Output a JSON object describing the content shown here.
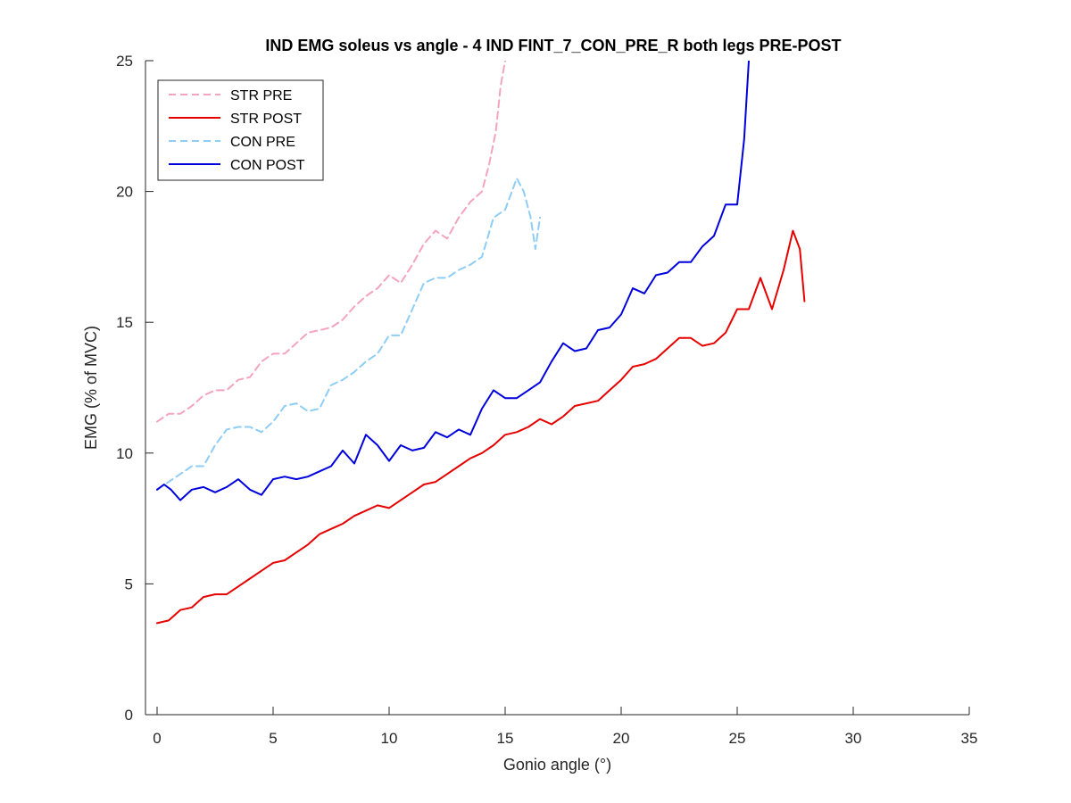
{
  "chart_data": {
    "type": "line",
    "title": "IND EMG soleus vs angle - 4 IND FINT_7_CON_PRE_R both legs PRE-POST",
    "xlabel": "Gonio angle (°)",
    "ylabel": "EMG (% of MVC)",
    "xlim": [
      -0.5,
      35
    ],
    "ylim": [
      0,
      25
    ],
    "xticks": [
      0,
      5,
      10,
      15,
      20,
      25,
      30,
      35
    ],
    "yticks": [
      0,
      5,
      10,
      15,
      20,
      25
    ],
    "grid": false,
    "legend_position": "top-left",
    "series": [
      {
        "name": "STR PRE",
        "color": "#f4a3c0",
        "dash": "dashed",
        "x": [
          0,
          0.5,
          1,
          1.5,
          2,
          2.5,
          3,
          3.5,
          4,
          4.5,
          5,
          5.5,
          6,
          6.5,
          7,
          7.5,
          8,
          8.5,
          9,
          9.5,
          10,
          10.5,
          11,
          11.5,
          12,
          12.5,
          13,
          13.5,
          14,
          14.3,
          14.6,
          14.8,
          15
        ],
        "y": [
          11.2,
          11.5,
          11.5,
          11.8,
          12.2,
          12.4,
          12.4,
          12.8,
          12.9,
          13.5,
          13.8,
          13.8,
          14.2,
          14.6,
          14.7,
          14.8,
          15.1,
          15.6,
          16.0,
          16.3,
          16.8,
          16.5,
          17.2,
          18.0,
          18.5,
          18.2,
          19.0,
          19.6,
          20.0,
          21.0,
          22.3,
          24.0,
          25.0
        ]
      },
      {
        "name": "STR POST",
        "color": "#e60000",
        "dash": "solid",
        "x": [
          0,
          0.5,
          1,
          1.5,
          2,
          2.5,
          3,
          3.5,
          4,
          4.5,
          5,
          5.5,
          6,
          6.5,
          7,
          7.5,
          8,
          8.5,
          9,
          9.5,
          10,
          10.5,
          11,
          11.5,
          12,
          12.5,
          13,
          13.5,
          14,
          14.5,
          15,
          15.5,
          16,
          16.5,
          17,
          17.5,
          18,
          18.5,
          19,
          19.5,
          20,
          20.5,
          21,
          21.5,
          22,
          22.5,
          23,
          23.5,
          24,
          24.5,
          25,
          25.5,
          26,
          26.5,
          27,
          27.4,
          27.7,
          27.9
        ],
        "y": [
          3.5,
          3.6,
          4.0,
          4.1,
          4.5,
          4.6,
          4.6,
          4.9,
          5.2,
          5.5,
          5.8,
          5.9,
          6.2,
          6.5,
          6.9,
          7.1,
          7.3,
          7.6,
          7.8,
          8.0,
          7.9,
          8.2,
          8.5,
          8.8,
          8.9,
          9.2,
          9.5,
          9.8,
          10.0,
          10.3,
          10.7,
          10.8,
          11.0,
          11.3,
          11.1,
          11.4,
          11.8,
          11.9,
          12.0,
          12.4,
          12.8,
          13.3,
          13.4,
          13.6,
          14.0,
          14.4,
          14.4,
          14.1,
          14.2,
          14.6,
          15.5,
          15.5,
          16.7,
          15.5,
          17.0,
          18.5,
          17.8,
          15.8
        ]
      },
      {
        "name": "CON PRE",
        "color": "#8ecdf5",
        "dash": "dashed",
        "x": [
          0,
          0.5,
          1,
          1.5,
          2,
          2.5,
          3,
          3.5,
          4,
          4.5,
          5,
          5.5,
          6,
          6.5,
          7,
          7.5,
          8,
          8.5,
          9,
          9.5,
          10,
          10.5,
          11,
          11.5,
          12,
          12.5,
          13,
          13.5,
          14,
          14.5,
          15,
          15.5,
          15.8,
          16.1,
          16.3,
          16.5
        ],
        "y": [
          8.6,
          8.9,
          9.2,
          9.5,
          9.5,
          10.3,
          10.9,
          11.0,
          11.0,
          10.8,
          11.2,
          11.8,
          11.9,
          11.6,
          11.7,
          12.6,
          12.8,
          13.1,
          13.5,
          13.8,
          14.5,
          14.5,
          15.5,
          16.5,
          16.7,
          16.7,
          17.0,
          17.2,
          17.5,
          19.0,
          19.3,
          20.5,
          20.0,
          19.0,
          17.8,
          19.0
        ]
      },
      {
        "name": "CON POST",
        "color": "#0000dd",
        "dash": "solid",
        "x": [
          0,
          0.3,
          0.6,
          1,
          1.5,
          2,
          2.5,
          3,
          3.5,
          4,
          4.5,
          5,
          5.5,
          6,
          6.5,
          7,
          7.5,
          8,
          8.5,
          9,
          9.5,
          10,
          10.5,
          11,
          11.5,
          12,
          12.5,
          13,
          13.5,
          14,
          14.5,
          15,
          15.5,
          16,
          16.5,
          17,
          17.5,
          18,
          18.5,
          19,
          19.5,
          20,
          20.5,
          21,
          21.5,
          22,
          22.5,
          23,
          23.5,
          24,
          24.5,
          25,
          25.3,
          25.5
        ],
        "y": [
          8.6,
          8.8,
          8.6,
          8.2,
          8.6,
          8.7,
          8.5,
          8.7,
          9.0,
          8.6,
          8.4,
          9.0,
          9.1,
          9.0,
          9.1,
          9.3,
          9.5,
          10.1,
          9.6,
          10.7,
          10.3,
          9.7,
          10.3,
          10.1,
          10.2,
          10.8,
          10.6,
          10.9,
          10.7,
          11.7,
          12.4,
          12.1,
          12.1,
          12.4,
          12.7,
          13.5,
          14.2,
          13.9,
          14.0,
          14.7,
          14.8,
          15.3,
          16.3,
          16.1,
          16.8,
          16.9,
          17.3,
          17.3,
          17.9,
          18.3,
          19.5,
          19.5,
          22.0,
          25.0
        ]
      }
    ]
  }
}
